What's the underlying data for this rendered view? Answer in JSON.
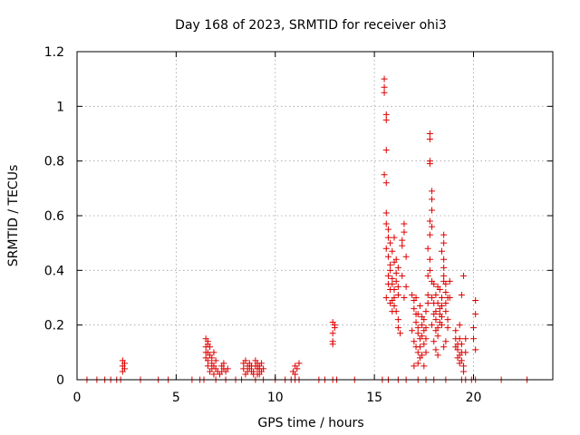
{
  "chart_data": {
    "type": "scatter",
    "title": "Day 168 of 2023, SRMTID for receiver ohi3",
    "xlabel": "GPS time / hours",
    "ylabel": "SRMTID / TECUs",
    "xlim": [
      0,
      24
    ],
    "ylim": [
      0,
      1.2
    ],
    "x_ticks": [
      0,
      5,
      10,
      15,
      20
    ],
    "x_tick_labels": [
      "0",
      "5",
      "10",
      "15",
      "20"
    ],
    "y_ticks": [
      0,
      0.2,
      0.4,
      0.6,
      0.8,
      1.0,
      1.2
    ],
    "y_tick_labels": [
      "0",
      "0.2",
      "0.4",
      "0.6",
      "0.8",
      "1",
      "1.2"
    ],
    "grid": true,
    "marker": "+",
    "series": [
      {
        "name": "SRMTID",
        "color": "#dd0000",
        "points": [
          [
            0.5,
            0
          ],
          [
            1.0,
            0
          ],
          [
            1.4,
            0
          ],
          [
            1.7,
            0
          ],
          [
            2.0,
            0
          ],
          [
            2.2,
            0
          ],
          [
            3.2,
            0
          ],
          [
            4.1,
            0
          ],
          [
            4.6,
            0
          ],
          [
            5.8,
            0
          ],
          [
            6.2,
            0
          ],
          [
            6.4,
            0
          ],
          [
            7.0,
            0
          ],
          [
            7.5,
            0
          ],
          [
            8.0,
            0
          ],
          [
            8.3,
            0
          ],
          [
            9.0,
            0
          ],
          [
            9.4,
            0
          ],
          [
            10.0,
            0
          ],
          [
            10.5,
            0
          ],
          [
            10.8,
            0
          ],
          [
            11.0,
            0
          ],
          [
            11.2,
            0
          ],
          [
            12.2,
            0
          ],
          [
            12.5,
            0
          ],
          [
            12.9,
            0
          ],
          [
            13.1,
            0
          ],
          [
            14.0,
            0
          ],
          [
            15.4,
            0
          ],
          [
            15.7,
            0
          ],
          [
            16.2,
            0
          ],
          [
            16.6,
            0
          ],
          [
            17.2,
            0
          ],
          [
            17.6,
            0
          ],
          [
            18.0,
            0
          ],
          [
            18.6,
            0
          ],
          [
            19.4,
            0
          ],
          [
            19.6,
            0
          ],
          [
            19.9,
            0
          ],
          [
            20.1,
            0
          ],
          [
            21.4,
            0
          ],
          [
            22.7,
            0
          ],
          [
            2.3,
            0.07
          ],
          [
            2.3,
            0.05
          ],
          [
            2.4,
            0.04
          ],
          [
            2.3,
            0.03
          ],
          [
            2.4,
            0.06
          ],
          [
            6.5,
            0.15
          ],
          [
            6.6,
            0.14
          ],
          [
            6.5,
            0.12
          ],
          [
            6.6,
            0.1
          ],
          [
            6.7,
            0.09
          ],
          [
            6.7,
            0.12
          ],
          [
            6.8,
            0.08
          ],
          [
            6.6,
            0.07
          ],
          [
            6.8,
            0.06
          ],
          [
            6.9,
            0.05
          ],
          [
            6.9,
            0.1
          ],
          [
            7.0,
            0.04
          ],
          [
            7.0,
            0.07
          ],
          [
            6.5,
            0.08
          ],
          [
            6.6,
            0.05
          ],
          [
            6.7,
            0.03
          ],
          [
            6.5,
            0.1
          ],
          [
            6.6,
            0.13
          ],
          [
            6.8,
            0.04
          ],
          [
            7.1,
            0.03
          ],
          [
            6.9,
            0.02
          ],
          [
            7.3,
            0.05
          ],
          [
            7.4,
            0.04
          ],
          [
            7.5,
            0.03
          ],
          [
            7.4,
            0.06
          ],
          [
            7.6,
            0.04
          ],
          [
            7.3,
            0.03
          ],
          [
            7.2,
            0.02
          ],
          [
            8.5,
            0.07
          ],
          [
            8.6,
            0.05
          ],
          [
            8.4,
            0.04
          ],
          [
            8.6,
            0.03
          ],
          [
            8.7,
            0.04
          ],
          [
            8.8,
            0.05
          ],
          [
            8.9,
            0.03
          ],
          [
            9.0,
            0.05
          ],
          [
            9.1,
            0.04
          ],
          [
            9.2,
            0.05
          ],
          [
            9.1,
            0.06
          ],
          [
            9.3,
            0.03
          ],
          [
            9.2,
            0.02
          ],
          [
            8.5,
            0.02
          ],
          [
            8.7,
            0.06
          ],
          [
            8.9,
            0.02
          ],
          [
            9.0,
            0.07
          ],
          [
            9.3,
            0.06
          ],
          [
            9.4,
            0.04
          ],
          [
            9.2,
            0.04
          ],
          [
            8.4,
            0.06
          ],
          [
            8.8,
            0.03
          ],
          [
            9.1,
            0.02
          ],
          [
            10.9,
            0.03
          ],
          [
            11.0,
            0.05
          ],
          [
            11.1,
            0.04
          ],
          [
            11.2,
            0.06
          ],
          [
            11.0,
            0.02
          ],
          [
            12.9,
            0.21
          ],
          [
            12.9,
            0.17
          ],
          [
            13.0,
            0.19
          ],
          [
            12.9,
            0.14
          ],
          [
            13.0,
            0.2
          ],
          [
            12.9,
            0.13
          ],
          [
            15.5,
            1.1
          ],
          [
            15.5,
            1.07
          ],
          [
            15.5,
            1.05
          ],
          [
            15.6,
            0.97
          ],
          [
            15.6,
            0.95
          ],
          [
            15.6,
            0.84
          ],
          [
            15.5,
            0.75
          ],
          [
            15.6,
            0.72
          ],
          [
            15.6,
            0.61
          ],
          [
            15.6,
            0.57
          ],
          [
            15.7,
            0.55
          ],
          [
            15.7,
            0.52
          ],
          [
            15.6,
            0.48
          ],
          [
            15.7,
            0.45
          ],
          [
            15.8,
            0.42
          ],
          [
            15.8,
            0.4
          ],
          [
            15.9,
            0.37
          ],
          [
            15.9,
            0.35
          ],
          [
            16.0,
            0.33
          ],
          [
            16.0,
            0.3
          ],
          [
            15.8,
            0.28
          ],
          [
            15.9,
            0.25
          ],
          [
            16.0,
            0.43
          ],
          [
            16.1,
            0.39
          ],
          [
            16.1,
            0.36
          ],
          [
            16.2,
            0.34
          ],
          [
            16.2,
            0.31
          ],
          [
            15.7,
            0.35
          ],
          [
            15.8,
            0.5
          ],
          [
            15.9,
            0.47
          ],
          [
            16.0,
            0.52
          ],
          [
            16.1,
            0.44
          ],
          [
            16.2,
            0.41
          ],
          [
            15.6,
            0.3
          ],
          [
            15.7,
            0.38
          ],
          [
            15.8,
            0.33
          ],
          [
            15.9,
            0.29
          ],
          [
            16.0,
            0.27
          ],
          [
            16.1,
            0.25
          ],
          [
            16.2,
            0.19
          ],
          [
            16.3,
            0.17
          ],
          [
            16.2,
            0.22
          ],
          [
            16.4,
            0.51
          ],
          [
            16.4,
            0.49
          ],
          [
            16.5,
            0.57
          ],
          [
            16.5,
            0.54
          ],
          [
            16.4,
            0.38
          ],
          [
            16.6,
            0.34
          ],
          [
            16.5,
            0.3
          ],
          [
            16.6,
            0.45
          ],
          [
            16.9,
            0.31
          ],
          [
            17.0,
            0.29
          ],
          [
            17.0,
            0.26
          ],
          [
            17.1,
            0.24
          ],
          [
            17.1,
            0.21
          ],
          [
            17.2,
            0.19
          ],
          [
            17.2,
            0.17
          ],
          [
            17.3,
            0.15
          ],
          [
            17.1,
            0.12
          ],
          [
            17.2,
            0.1
          ],
          [
            17.3,
            0.08
          ],
          [
            17.0,
            0.14
          ],
          [
            16.9,
            0.18
          ],
          [
            17.1,
            0.3
          ],
          [
            17.3,
            0.27
          ],
          [
            17.4,
            0.23
          ],
          [
            17.4,
            0.2
          ],
          [
            17.5,
            0.18
          ],
          [
            17.5,
            0.22
          ],
          [
            17.4,
            0.16
          ],
          [
            17.3,
            0.12
          ],
          [
            17.5,
            0.13
          ],
          [
            17.6,
            0.15
          ],
          [
            17.6,
            0.19
          ],
          [
            17.6,
            0.25
          ],
          [
            17.7,
            0.31
          ],
          [
            17.7,
            0.28
          ],
          [
            17.2,
            0.24
          ],
          [
            17.4,
            0.09
          ],
          [
            17.6,
            0.1
          ],
          [
            17.0,
            0.05
          ],
          [
            17.2,
            0.06
          ],
          [
            17.5,
            0.05
          ],
          [
            17.7,
            0.38
          ],
          [
            17.8,
            0.44
          ],
          [
            17.8,
            0.4
          ],
          [
            17.9,
            0.36
          ],
          [
            17.7,
            0.48
          ],
          [
            17.8,
            0.53
          ],
          [
            17.9,
            0.56
          ],
          [
            17.8,
            0.58
          ],
          [
            17.9,
            0.62
          ],
          [
            17.9,
            0.66
          ],
          [
            17.9,
            0.69
          ],
          [
            17.8,
            0.79
          ],
          [
            17.8,
            0.8
          ],
          [
            17.8,
            0.88
          ],
          [
            17.8,
            0.9
          ],
          [
            17.9,
            0.3
          ],
          [
            18.0,
            0.28
          ],
          [
            18.1,
            0.25
          ],
          [
            18.1,
            0.22
          ],
          [
            18.2,
            0.19
          ],
          [
            18.2,
            0.16
          ],
          [
            18.3,
            0.21
          ],
          [
            18.3,
            0.24
          ],
          [
            18.4,
            0.27
          ],
          [
            18.4,
            0.3
          ],
          [
            18.3,
            0.33
          ],
          [
            18.5,
            0.36
          ],
          [
            18.5,
            0.38
          ],
          [
            18.5,
            0.41
          ],
          [
            18.5,
            0.44
          ],
          [
            18.4,
            0.47
          ],
          [
            18.5,
            0.5
          ],
          [
            18.5,
            0.53
          ],
          [
            18.6,
            0.32
          ],
          [
            18.6,
            0.28
          ],
          [
            18.6,
            0.25
          ],
          [
            18.7,
            0.22
          ],
          [
            18.7,
            0.19
          ],
          [
            18.6,
            0.35
          ],
          [
            18.0,
            0.35
          ],
          [
            18.1,
            0.31
          ],
          [
            18.2,
            0.28
          ],
          [
            18.0,
            0.14
          ],
          [
            18.1,
            0.11
          ],
          [
            18.2,
            0.09
          ],
          [
            18.3,
            0.26
          ],
          [
            18.4,
            0.23
          ],
          [
            18.6,
            0.14
          ],
          [
            18.5,
            0.12
          ],
          [
            18.7,
            0.3
          ],
          [
            18.8,
            0.36
          ],
          [
            18.8,
            0.3
          ],
          [
            18.4,
            0.2
          ],
          [
            18.2,
            0.34
          ],
          [
            18.0,
            0.24
          ],
          [
            18.1,
            0.18
          ],
          [
            17.9,
            0.2
          ],
          [
            19.1,
            0.15
          ],
          [
            19.2,
            0.13
          ],
          [
            19.2,
            0.11
          ],
          [
            19.3,
            0.09
          ],
          [
            19.1,
            0.12
          ],
          [
            19.3,
            0.15
          ],
          [
            19.4,
            0.13
          ],
          [
            19.4,
            0.1
          ],
          [
            19.4,
            0.07
          ],
          [
            19.5,
            0.05
          ],
          [
            19.3,
            0.06
          ],
          [
            19.2,
            0.08
          ],
          [
            19.1,
            0.18
          ],
          [
            19.3,
            0.2
          ],
          [
            19.4,
            0.31
          ],
          [
            19.5,
            0.38
          ],
          [
            19.6,
            0.15
          ],
          [
            19.6,
            0.1
          ],
          [
            19.5,
            0.03
          ],
          [
            20.1,
            0.29
          ],
          [
            20.1,
            0.24
          ],
          [
            20.0,
            0.19
          ],
          [
            20.1,
            0.11
          ],
          [
            20.0,
            0.15
          ]
        ]
      }
    ]
  }
}
